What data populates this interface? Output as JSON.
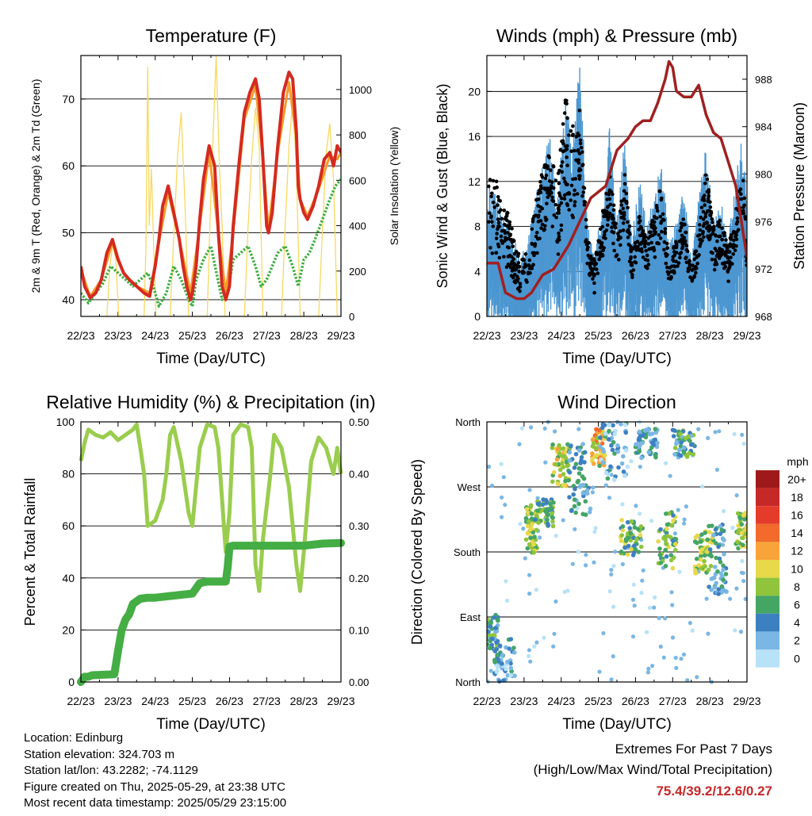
{
  "chart_data": [
    {
      "id": "temperature",
      "type": "line",
      "title": "Temperature (F)",
      "xlabel": "Time (Day/UTC)",
      "ylabel": "2m & 9m T (Red, Orange) & 2m Td (Green)",
      "ylabel_right": "Solar Insolation (Yellow)",
      "x_ticks": [
        "22/23",
        "23/23",
        "24/23",
        "25/23",
        "26/23",
        "27/23",
        "28/23",
        "29/23"
      ],
      "xlim": [
        0,
        7
      ],
      "ylim": [
        37.5,
        76.5
      ],
      "y_ticks": [
        40,
        50,
        60,
        70
      ],
      "ylim_right": [
        0,
        1150
      ],
      "y_ticks_right": [
        0,
        200,
        400,
        600,
        800,
        1000
      ],
      "grid": true,
      "colors": {
        "t2m": "#d42a20",
        "t9m": "#f59b2a",
        "td": "#3fae3f",
        "solar": "#f8d860"
      },
      "series": [
        {
          "key": "t2m",
          "x": [
            0,
            0.1,
            0.25,
            0.4,
            0.55,
            0.7,
            0.85,
            1.0,
            1.15,
            1.3,
            1.5,
            1.7,
            1.85,
            2.0,
            2.1,
            2.2,
            2.35,
            2.5,
            2.65,
            2.75,
            2.85,
            2.95,
            3.0,
            3.1,
            3.2,
            3.3,
            3.45,
            3.6,
            3.7,
            3.8,
            3.9,
            4.0,
            4.1,
            4.25,
            4.4,
            4.55,
            4.7,
            4.8,
            4.9,
            5.0,
            5.05,
            5.15,
            5.3,
            5.45,
            5.6,
            5.7,
            5.8,
            5.85,
            5.9,
            6.0,
            6.1,
            6.25,
            6.4,
            6.55,
            6.7,
            6.8,
            6.9,
            7.0
          ],
          "y": [
            45,
            42,
            40.3,
            41,
            43,
            47,
            49,
            46,
            44,
            43,
            42,
            41,
            40.5,
            45,
            49,
            54,
            57,
            53,
            49,
            45,
            42,
            40,
            41,
            45,
            52,
            58,
            63,
            60,
            50,
            42,
            40,
            42,
            51,
            60,
            68,
            71,
            73,
            70,
            61,
            51,
            50,
            53,
            63,
            71,
            74,
            73,
            65,
            57,
            55,
            53,
            52,
            54,
            57,
            61,
            62,
            60,
            63,
            62
          ]
        },
        {
          "key": "t9m",
          "x": [
            0,
            0.25,
            0.55,
            0.85,
            1.15,
            1.5,
            1.85,
            2.1,
            2.35,
            2.65,
            2.95,
            3.2,
            3.45,
            3.7,
            3.9,
            4.1,
            4.4,
            4.7,
            4.9,
            5.05,
            5.3,
            5.6,
            5.8,
            5.9,
            6.1,
            6.4,
            6.7,
            6.9,
            7.0
          ],
          "y": [
            44.5,
            40.5,
            43,
            48.5,
            44,
            42,
            41,
            48.5,
            56,
            49,
            41,
            51,
            62,
            50,
            41,
            50,
            67,
            72,
            61,
            50.5,
            62,
            72.5,
            64,
            55,
            52.5,
            56.5,
            61.5,
            61,
            62
          ]
        },
        {
          "key": "td",
          "x": [
            0,
            0.2,
            0.4,
            0.6,
            0.8,
            1.0,
            1.2,
            1.4,
            1.6,
            1.8,
            1.95,
            2.1,
            2.3,
            2.5,
            2.7,
            2.9,
            3.0,
            3.1,
            3.3,
            3.5,
            3.65,
            3.8,
            3.95,
            4.1,
            4.3,
            4.5,
            4.7,
            4.85,
            5.0,
            5.15,
            5.3,
            5.5,
            5.7,
            5.85,
            6.0,
            6.15,
            6.3,
            6.5,
            6.7,
            6.85,
            7.0
          ],
          "y": [
            41,
            39.5,
            41,
            42.5,
            45,
            44,
            43,
            42,
            43,
            44,
            42,
            39,
            41,
            45,
            43,
            40,
            39,
            43,
            46,
            48,
            44,
            40,
            41,
            46,
            47,
            48,
            45,
            42,
            43,
            45,
            47,
            48,
            45,
            42,
            46,
            47,
            49,
            52,
            55,
            57,
            58
          ]
        },
        {
          "key": "solar",
          "x": [
            0.7,
            0.78,
            0.86,
            0.94,
            1.02,
            1.7,
            1.75,
            1.8,
            1.84,
            1.9,
            1.96,
            2.02,
            2.4,
            2.5,
            2.6,
            2.7,
            2.8,
            2.9,
            3.4,
            3.48,
            3.56,
            3.64,
            3.72,
            3.8,
            3.88,
            4.4,
            4.5,
            4.6,
            4.7,
            4.8,
            4.9,
            5.4,
            5.5,
            5.6,
            5.7,
            5.8,
            5.9,
            6.4,
            6.5,
            6.6,
            6.7,
            6.8,
            6.9
          ],
          "y": [
            0,
            220,
            320,
            250,
            0,
            0,
            300,
            1100,
            400,
            650,
            300,
            0,
            0,
            350,
            700,
            900,
            500,
            0,
            0,
            450,
            800,
            1150,
            700,
            400,
            0,
            0,
            400,
            700,
            920,
            750,
            0,
            0,
            400,
            750,
            950,
            650,
            0,
            0,
            380,
            720,
            850,
            600,
            0
          ]
        }
      ]
    },
    {
      "id": "winds",
      "type": "scatter",
      "title": "Winds (mph) & Pressure (mb)",
      "xlabel": "Time (Day/UTC)",
      "ylabel": "Sonic Wind & Gust (Blue, Black)",
      "ylabel_right": "Station Pressure (Maroon)",
      "x_ticks": [
        "22/23",
        "23/23",
        "24/23",
        "25/23",
        "26/23",
        "27/23",
        "28/23",
        "29/23"
      ],
      "xlim": [
        0,
        7
      ],
      "ylim": [
        0,
        23.2
      ],
      "y_ticks": [
        0,
        4,
        8,
        12,
        16,
        20
      ],
      "ylim_right": [
        968,
        990
      ],
      "y_ticks_right": [
        968,
        972,
        976,
        980,
        984,
        988
      ],
      "grid": true,
      "colors": {
        "wind": "#4c97d1",
        "gust": "#000000",
        "pressure": "#a02020"
      },
      "wind_mean": {
        "x": [
          0,
          0.3,
          0.6,
          0.9,
          1.1,
          1.3,
          1.5,
          1.7,
          1.9,
          2.1,
          2.3,
          2.5,
          2.7,
          2.9,
          3.1,
          3.3,
          3.5,
          3.7,
          3.9,
          4.1,
          4.3,
          4.5,
          4.7,
          4.9,
          5.1,
          5.3,
          5.5,
          5.7,
          5.9,
          6.1,
          6.3,
          6.5,
          6.7,
          6.9,
          7.0
        ],
        "y": [
          6,
          5,
          4,
          2,
          3,
          5,
          7,
          8,
          5,
          10,
          8,
          12,
          4,
          2,
          5,
          9,
          4,
          8,
          3,
          6,
          4,
          5,
          7,
          3,
          4,
          6,
          2,
          5,
          8,
          4,
          5,
          3,
          6,
          9,
          4
        ]
      },
      "gust_envelope": {
        "x": [
          0,
          0.3,
          0.6,
          0.9,
          1.1,
          1.3,
          1.5,
          1.7,
          1.9,
          2.1,
          2.3,
          2.5,
          2.7,
          2.9,
          3.1,
          3.3,
          3.5,
          3.7,
          3.9,
          4.1,
          4.3,
          4.5,
          4.7,
          4.9,
          5.1,
          5.3,
          5.5,
          5.7,
          5.9,
          6.1,
          6.3,
          6.5,
          6.7,
          6.9,
          7.0
        ],
        "y": [
          14,
          12,
          9,
          5,
          6,
          10,
          13,
          15,
          12,
          20,
          17,
          19,
          7,
          5,
          9,
          13,
          8,
          13,
          6,
          9,
          7,
          9,
          12,
          5,
          7,
          9,
          4,
          8,
          13,
          8,
          9,
          6,
          10,
          13,
          6
        ]
      },
      "pressure": {
        "x": [
          0,
          0.3,
          0.5,
          0.8,
          1.0,
          1.2,
          1.5,
          1.8,
          2.0,
          2.2,
          2.5,
          2.8,
          3.0,
          3.2,
          3.5,
          3.8,
          4.0,
          4.2,
          4.4,
          4.6,
          4.8,
          4.9,
          5.0,
          5.1,
          5.3,
          5.5,
          5.7,
          5.9,
          6.1,
          6.3,
          6.5,
          6.7,
          6.9,
          7.0
        ],
        "y": [
          972.5,
          972.5,
          970,
          969.5,
          969.5,
          970,
          971.5,
          972,
          973,
          974,
          976,
          978,
          978.5,
          979,
          982,
          983,
          984,
          984.5,
          984.5,
          986,
          988,
          989.5,
          989,
          987,
          986.5,
          986.5,
          987.5,
          985,
          983.5,
          983,
          981,
          979,
          975,
          973
        ]
      }
    },
    {
      "id": "humidity",
      "type": "line",
      "title": "Relative Humidity (%) & Precipitation (in)",
      "xlabel": "Time (Day/UTC)",
      "ylabel": "Percent & Total Rainfall",
      "x_ticks": [
        "22/23",
        "23/23",
        "24/23",
        "25/23",
        "26/23",
        "27/23",
        "28/23",
        "29/23"
      ],
      "xlim": [
        0,
        7
      ],
      "ylim": [
        0,
        100
      ],
      "y_ticks": [
        0,
        20,
        40,
        60,
        80,
        100
      ],
      "ylim_right": [
        0,
        0.5
      ],
      "y_ticks_right": [
        "0.00",
        "0.10",
        "0.20",
        "0.30",
        "0.40",
        "0.50"
      ],
      "grid": true,
      "colors": {
        "rh": "#9acd4e",
        "precip": "#44ad44"
      },
      "series": [
        {
          "key": "rh",
          "x": [
            0,
            0.1,
            0.2,
            0.4,
            0.6,
            0.8,
            1.0,
            1.2,
            1.4,
            1.5,
            1.6,
            1.7,
            1.8,
            2.0,
            2.2,
            2.3,
            2.4,
            2.5,
            2.7,
            2.9,
            3.0,
            3.2,
            3.4,
            3.6,
            3.7,
            3.8,
            3.9,
            4.0,
            4.1,
            4.3,
            4.5,
            4.6,
            4.7,
            4.8,
            4.9,
            5.1,
            5.2,
            5.4,
            5.6,
            5.8,
            5.9,
            6.0,
            6.2,
            6.4,
            6.6,
            6.8,
            6.9,
            7.0
          ],
          "y": [
            85,
            92,
            97,
            95,
            94,
            96,
            93,
            95,
            97,
            99,
            90,
            80,
            60,
            62,
            70,
            80,
            95,
            98,
            85,
            65,
            60,
            90,
            99,
            98,
            90,
            70,
            50,
            65,
            95,
            99,
            98,
            90,
            45,
            35,
            55,
            80,
            95,
            90,
            75,
            45,
            35,
            50,
            85,
            94,
            90,
            80,
            90,
            80
          ]
        },
        {
          "key": "precip",
          "x": [
            0,
            0.1,
            0.2,
            0.3,
            0.9,
            1.0,
            1.1,
            1.2,
            1.3,
            1.4,
            1.6,
            1.8,
            2.0,
            3.0,
            3.2,
            3.4,
            3.7,
            3.9,
            3.95,
            4.0,
            4.1,
            4.5,
            4.8,
            5.0,
            5.5,
            6.0,
            6.5,
            7.0
          ],
          "y": [
            0,
            0.01,
            0.01,
            0.013,
            0.015,
            0.06,
            0.1,
            0.12,
            0.13,
            0.15,
            0.16,
            0.162,
            0.162,
            0.17,
            0.19,
            0.193,
            0.193,
            0.193,
            0.22,
            0.26,
            0.262,
            0.262,
            0.262,
            0.262,
            0.262,
            0.262,
            0.266,
            0.267
          ]
        }
      ]
    },
    {
      "id": "direction",
      "type": "scatter",
      "title": "Wind Direction",
      "xlabel": "Time (Day/UTC)",
      "ylabel": "Direction (Colored By Speed)",
      "x_ticks": [
        "22/23",
        "23/23",
        "24/23",
        "25/23",
        "26/23",
        "27/23",
        "28/23",
        "29/23"
      ],
      "xlim": [
        0,
        7
      ],
      "ylim": [
        0,
        360
      ],
      "y_ticks": [
        "North",
        "East",
        "South",
        "West",
        "North"
      ],
      "y_tick_values": [
        0,
        90,
        180,
        270,
        360
      ],
      "grid": true,
      "colorbar": {
        "title": "mph",
        "labels": [
          "20+",
          "18",
          "16",
          "14",
          "12",
          "10",
          "8",
          "6",
          "4",
          "2",
          "0"
        ],
        "colors": [
          "#9e1a1a",
          "#c62828",
          "#e53b2a",
          "#f26a2c",
          "#f8a43a",
          "#e8d84c",
          "#8fc43c",
          "#44a565",
          "#3d80c2",
          "#7ab7e4",
          "#b7e2f7"
        ]
      },
      "clusters": [
        {
          "x": 0.1,
          "y": 70,
          "dx": 0.2,
          "dy": 25,
          "speed": 5
        },
        {
          "x": 0.45,
          "y": 30,
          "dx": 0.3,
          "dy": 30,
          "speed": 3
        },
        {
          "x": 1.2,
          "y": 210,
          "dx": 0.15,
          "dy": 35,
          "speed": 8
        },
        {
          "x": 1.55,
          "y": 235,
          "dx": 0.25,
          "dy": 20,
          "speed": 6
        },
        {
          "x": 2.0,
          "y": 300,
          "dx": 0.25,
          "dy": 30,
          "speed": 9
        },
        {
          "x": 2.5,
          "y": 280,
          "dx": 0.3,
          "dy": 50,
          "speed": 4
        },
        {
          "x": 3.0,
          "y": 325,
          "dx": 0.18,
          "dy": 25,
          "speed": 11
        },
        {
          "x": 3.4,
          "y": 320,
          "dx": 0.4,
          "dy": 40,
          "speed": 3
        },
        {
          "x": 3.9,
          "y": 200,
          "dx": 0.3,
          "dy": 25,
          "speed": 7
        },
        {
          "x": 4.3,
          "y": 330,
          "dx": 0.3,
          "dy": 20,
          "speed": 4
        },
        {
          "x": 4.85,
          "y": 195,
          "dx": 0.25,
          "dy": 40,
          "speed": 7
        },
        {
          "x": 5.3,
          "y": 330,
          "dx": 0.3,
          "dy": 20,
          "speed": 5
        },
        {
          "x": 5.85,
          "y": 180,
          "dx": 0.25,
          "dy": 30,
          "speed": 8
        },
        {
          "x": 6.2,
          "y": 170,
          "dx": 0.25,
          "dy": 50,
          "speed": 4
        },
        {
          "x": 6.9,
          "y": 210,
          "dx": 0.2,
          "dy": 25,
          "speed": 9
        }
      ]
    }
  ],
  "info": {
    "location": "Location: Edinburg",
    "elevation": "Station elevation: 324.703 m",
    "latlon": "Station lat/lon: 43.2282; -74.1129",
    "created": "Figure created on Thu, 2025-05-29, at 23:38 UTC",
    "recent": "Most recent data timestamp: 2025/05/29 23:15:00"
  },
  "extremes": {
    "title": "Extremes For Past 7 Days",
    "subtitle": "(High/Low/Max Wind/Total Precipitation)",
    "values": "75.4/39.2/12.6/0.27",
    "values_color": "#c62828"
  }
}
